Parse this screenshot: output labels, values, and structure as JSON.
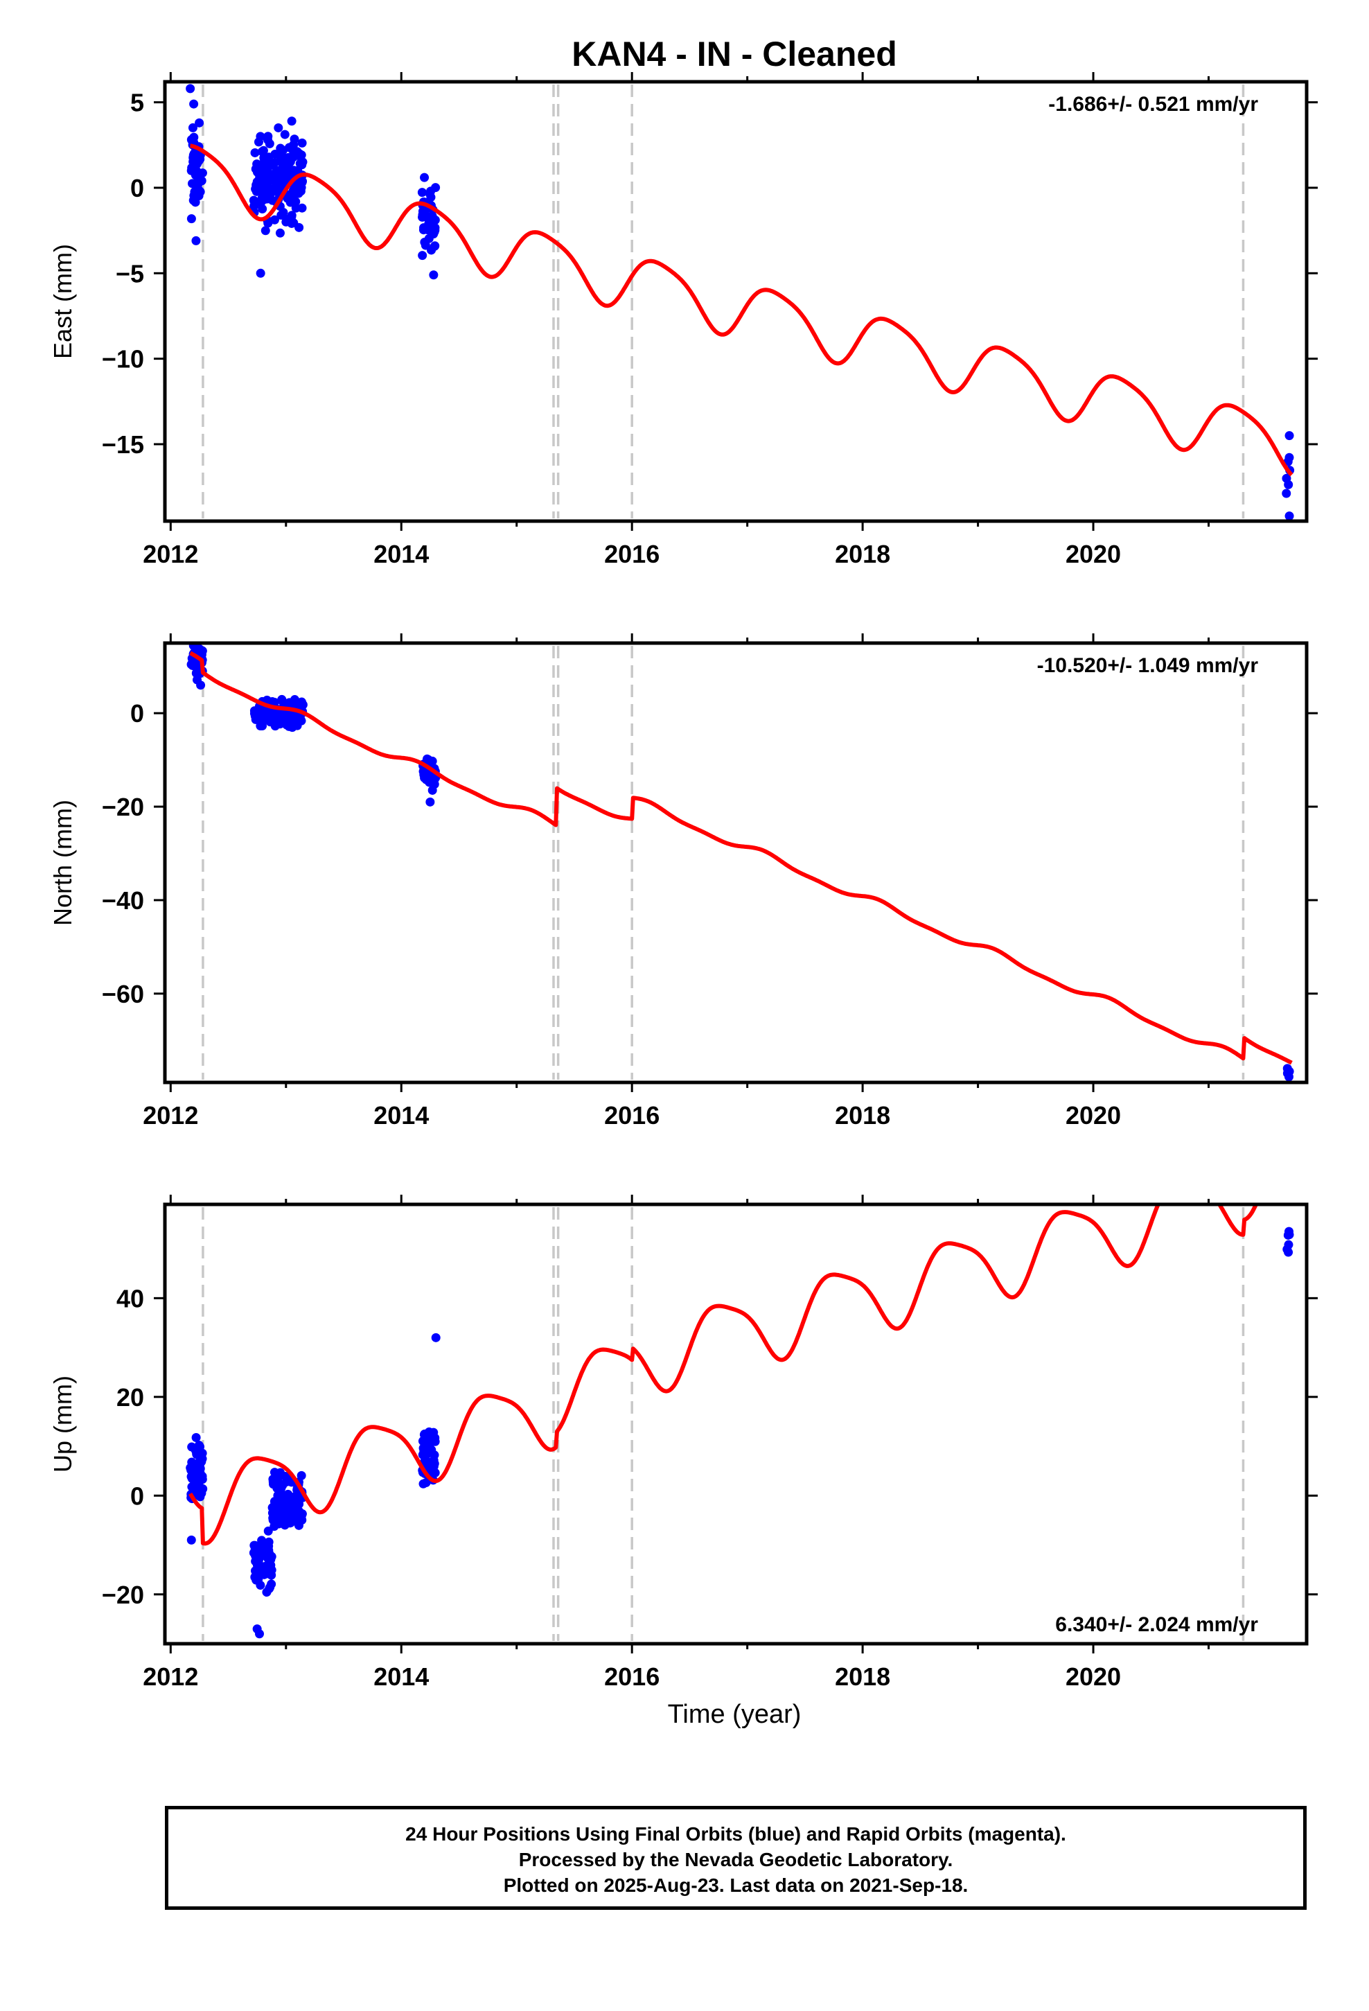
{
  "title": "KAN4  - IN - Cleaned",
  "xlabel": "Time (year)",
  "x_tick_labels": [
    "2012",
    "2014",
    "2016",
    "2018",
    "2020"
  ],
  "colors": {
    "data_points": "#0000ff",
    "model_line": "#ff0000",
    "events": "#c8c8c8",
    "frame": "#000000"
  },
  "footer": {
    "line1": "24 Hour Positions Using Final Orbits (blue) and Rapid Orbits (magenta).",
    "line2": "Processed by the Nevada Geodetic Laboratory.",
    "line3": "Plotted on 2025-Aug-23. Last data on 2021-Sep-18."
  },
  "chart_data": [
    {
      "type": "scatter",
      "component": "east",
      "ylabel": "East (mm)",
      "rate_label": "-1.686+/- 0.521 mm/yr",
      "rate_position": "top-right",
      "xlim": [
        2011.95,
        2021.85
      ],
      "ylim": [
        -19.5,
        6.2
      ],
      "y_ticks": [
        5,
        0,
        -5,
        -10,
        -15
      ],
      "y_tick_labels": [
        "5",
        "0",
        "−10",
        "−15"
      ],
      "y_tick_labels_all": [
        "5",
        "0",
        "−5",
        "−10",
        "−15"
      ],
      "event_lines": [
        2012.28,
        2015.32,
        2015.36,
        2016.0,
        2021.3
      ],
      "data_clusters": [
        {
          "start": 2012.17,
          "end": 2012.28,
          "center": 1.0,
          "spread": 2.5,
          "n": 45
        },
        {
          "start": 2012.72,
          "end": 2013.15,
          "center": 0.5,
          "spread": 2.5,
          "n": 170
        },
        {
          "start": 2014.18,
          "end": 2014.3,
          "center": -1.9,
          "spread": 2.0,
          "n": 45
        },
        {
          "start": 2021.67,
          "end": 2021.72,
          "center": -16.5,
          "spread": 1.5,
          "n": 6
        }
      ],
      "outliers": [
        [
          2012.17,
          5.8
        ],
        [
          2012.2,
          4.9
        ],
        [
          2012.22,
          -3.1
        ],
        [
          2012.78,
          -5.0
        ],
        [
          2013.05,
          3.9
        ],
        [
          2014.2,
          0.6
        ],
        [
          2014.28,
          -5.1
        ],
        [
          2021.7,
          -19.2
        ],
        [
          2021.7,
          -14.5
        ]
      ],
      "model": {
        "trend": -1.686,
        "t0": 2012.2,
        "offset": 1.0,
        "amp_annual": 1.6,
        "phase_annual": 0.0,
        "amp_semi": 0.3,
        "phase_semi": 1.0,
        "steps": []
      }
    },
    {
      "type": "scatter",
      "component": "north",
      "ylabel": "North (mm)",
      "rate_label": "-10.520+/- 1.049 mm/yr",
      "rate_position": "top-right",
      "xlim": [
        2011.95,
        2021.85
      ],
      "ylim": [
        -79,
        15
      ],
      "y_ticks": [
        0,
        -20,
        -40,
        -60
      ],
      "y_tick_labels_all": [
        "0",
        "−20",
        "−40",
        "−60"
      ],
      "event_lines": [
        2012.28,
        2015.32,
        2015.36,
        2016.0,
        2021.3
      ],
      "data_clusters": [
        {
          "start": 2012.17,
          "end": 2012.28,
          "center": 11.0,
          "spread": 3.0,
          "n": 40
        },
        {
          "start": 2012.72,
          "end": 2013.15,
          "center": 0.0,
          "spread": 2.5,
          "n": 170
        },
        {
          "start": 2014.18,
          "end": 2014.3,
          "center": -12.5,
          "spread": 2.5,
          "n": 40
        },
        {
          "start": 2021.67,
          "end": 2021.72,
          "center": -76.5,
          "spread": 1.2,
          "n": 6
        }
      ],
      "outliers": [
        [
          2014.25,
          -19.0
        ],
        [
          2014.27,
          -16.5
        ],
        [
          2012.26,
          6.0
        ]
      ],
      "model": {
        "trend": -10.52,
        "t0": 2012.2,
        "offset": 11.5,
        "amp_annual": 0.8,
        "phase_annual": 0.5,
        "amp_semi": 0.3,
        "phase_semi": 0.0,
        "steps": [
          [
            2012.28,
            -2.5
          ],
          [
            2015.34,
            8.0
          ],
          [
            2016.0,
            4.5
          ],
          [
            2021.3,
            4.5
          ]
        ]
      }
    },
    {
      "type": "scatter",
      "component": "up",
      "ylabel": "Up (mm)",
      "rate_label": "6.340+/- 2.024 mm/yr",
      "rate_position": "bottom-right",
      "xlim": [
        2011.95,
        2021.85
      ],
      "ylim": [
        -30,
        59
      ],
      "y_ticks": [
        40,
        20,
        0,
        -20
      ],
      "y_tick_labels_all": [
        "40",
        "20",
        "0",
        "−20"
      ],
      "event_lines": [
        2012.28,
        2015.32,
        2015.36,
        2016.0,
        2021.3
      ],
      "data_clusters": [
        {
          "start": 2012.17,
          "end": 2012.28,
          "center": 4.0,
          "spread": 6.0,
          "n": 55
        },
        {
          "start": 2012.72,
          "end": 2012.88,
          "center": -14.0,
          "spread": 6.0,
          "n": 60
        },
        {
          "start": 2012.88,
          "end": 2013.15,
          "center": -2.0,
          "spread": 6.0,
          "n": 110
        },
        {
          "start": 2014.18,
          "end": 2014.3,
          "center": 8.0,
          "spread": 6.0,
          "n": 50
        },
        {
          "start": 2021.67,
          "end": 2021.72,
          "center": 52.0,
          "spread": 4.0,
          "n": 6
        }
      ],
      "outliers": [
        [
          2014.3,
          32.0
        ],
        [
          2012.77,
          -28.0
        ],
        [
          2012.75,
          -27.0
        ],
        [
          2012.18,
          -9.0
        ]
      ],
      "model": {
        "trend": 6.34,
        "t0": 2012.2,
        "offset": 5.0,
        "amp_annual": 7.0,
        "phase_annual": 2.9,
        "amp_semi": 1.5,
        "phase_semi": 0.5,
        "steps": [
          [
            2012.28,
            -7.0
          ],
          [
            2015.34,
            3.0
          ],
          [
            2016.0,
            2.5
          ],
          [
            2021.3,
            3.0
          ]
        ]
      }
    }
  ]
}
